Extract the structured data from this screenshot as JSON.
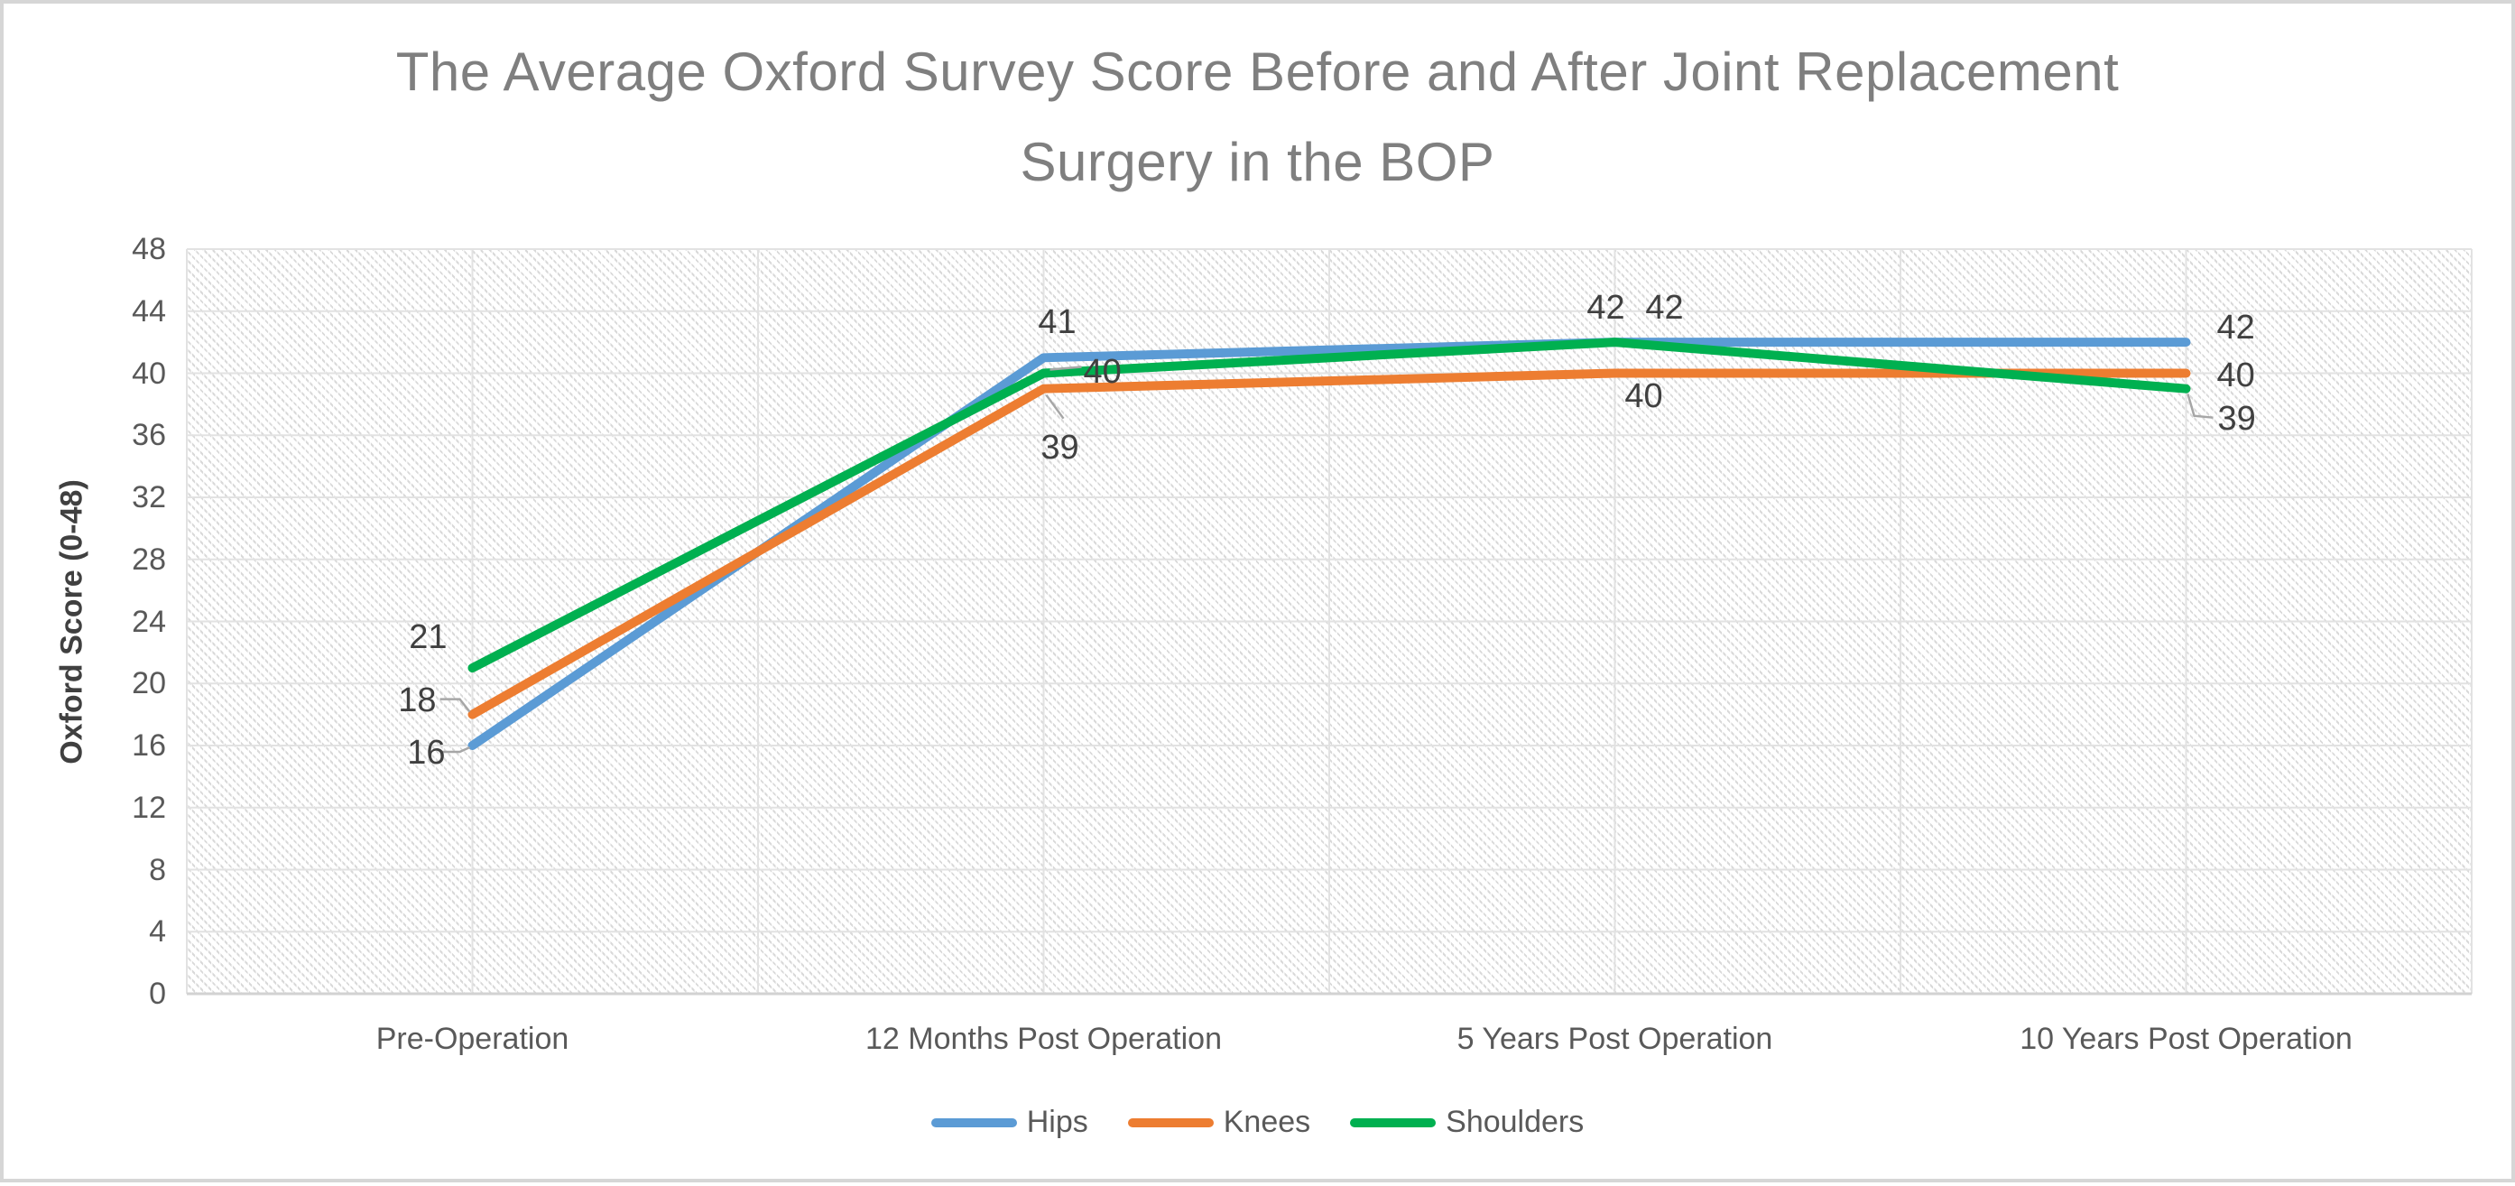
{
  "header": {
    "title_lines": [
      "The Average Oxford Survey Score Before and After Joint Replacement",
      "Surgery in the BOP"
    ]
  },
  "chart_data": {
    "type": "line",
    "title": "The Average Oxford Survey Score Before and After Joint Replacement Surgery in the BOP",
    "xlabel": "",
    "ylabel": "Oxford Score (0-48)",
    "ylim": [
      0,
      48
    ],
    "ytick_step": 4,
    "ytick_labels": [
      "0",
      "4",
      "8",
      "12",
      "16",
      "20",
      "24",
      "28",
      "32",
      "36",
      "40",
      "44",
      "48"
    ],
    "grid": true,
    "plot_background": "diagonal-hatch",
    "legend_position": "bottom",
    "data_labels_shown": true,
    "categories": [
      "Pre-Operation",
      "12 Months Post Operation",
      "5 Years Post Operation",
      "10 Years Post Operation"
    ],
    "series": [
      {
        "name": "Hips",
        "color": "#5B9BD5",
        "values": [
          16,
          41,
          42,
          42
        ]
      },
      {
        "name": "Knees",
        "color": "#ED7D31",
        "values": [
          18,
          39,
          40,
          40
        ]
      },
      {
        "name": "Shoulders",
        "color": "#00B050",
        "values": [
          21,
          40,
          42,
          39
        ]
      }
    ],
    "colors": {
      "title_text": "#7F7F7F",
      "axis_text": "#595959",
      "data_label_text": "#404040",
      "gridline": "#E2E2E2",
      "axis_line": "#D2D2D2",
      "leader_line": "#A6A6A6",
      "frame_border": "#D6D6D6",
      "plot_hatch": "#D9D9D9"
    }
  }
}
